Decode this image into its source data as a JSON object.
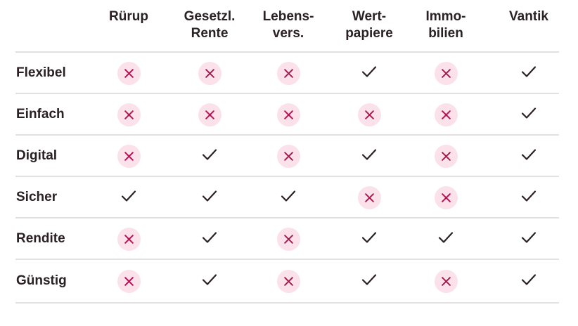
{
  "columns": [
    "Rürup",
    "Gesetzl.\nRente",
    "Lebens-\nvers.",
    "Wert-\npapiere",
    "Immo-\nbilien",
    "Vantik"
  ],
  "rows": [
    {
      "label": "Flexibel",
      "values": [
        "no",
        "no",
        "no",
        "yes",
        "no",
        "yes"
      ]
    },
    {
      "label": "Einfach",
      "values": [
        "no",
        "no",
        "no",
        "no",
        "no",
        "yes"
      ]
    },
    {
      "label": "Digital",
      "values": [
        "no",
        "yes",
        "no",
        "yes",
        "no",
        "yes"
      ]
    },
    {
      "label": "Sicher",
      "values": [
        "yes",
        "yes",
        "yes",
        "no",
        "no",
        "yes"
      ]
    },
    {
      "label": "Rendite",
      "values": [
        "no",
        "yes",
        "no",
        "yes",
        "yes",
        "yes"
      ]
    },
    {
      "label": "Günstig",
      "values": [
        "no",
        "yes",
        "no",
        "yes",
        "no",
        "yes"
      ]
    }
  ],
  "icons": {
    "yes": "check-icon",
    "no": "cross-icon"
  },
  "colors": {
    "text": "#2b2024",
    "cross": "#b3134f",
    "cross_background": "#fbe1ea",
    "divider": "#e2e0e1"
  }
}
